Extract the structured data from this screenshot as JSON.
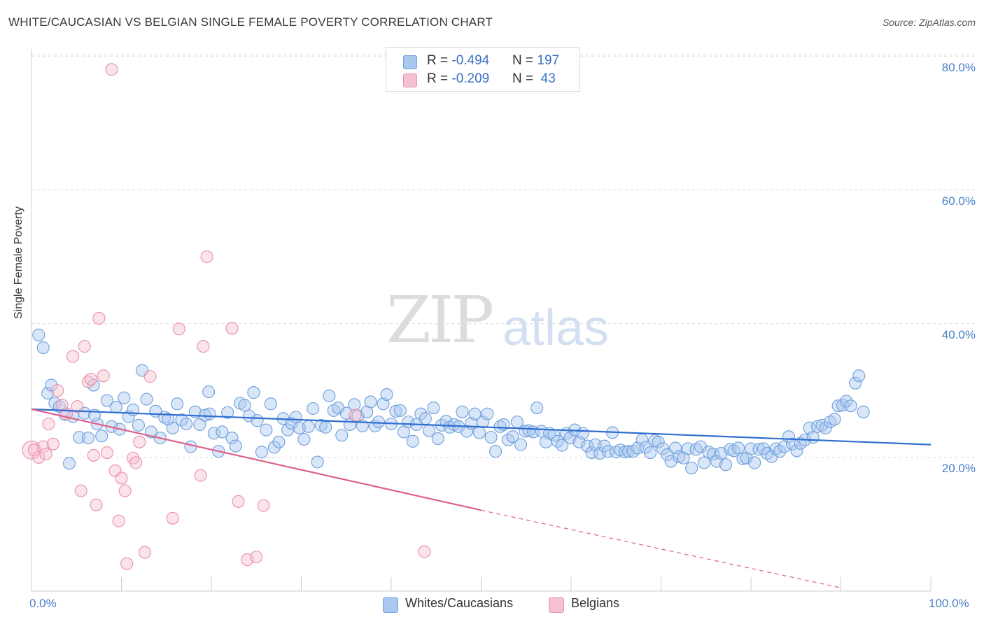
{
  "header": {
    "title": "WHITE/CAUCASIAN VS BELGIAN SINGLE FEMALE POVERTY CORRELATION CHART",
    "source": "Source: ZipAtlas.com"
  },
  "watermark": {
    "part1": "ZIP",
    "part2": "atlas"
  },
  "legend": {
    "rows": [
      {
        "r_label": "R = ",
        "r_value": "-0.494",
        "n_label": "N = ",
        "n_value": "197",
        "color": "#a9c7ef",
        "border": "#6e9fdc"
      },
      {
        "r_label": "R = ",
        "r_value": "-0.209",
        "n_label": "N = ",
        "n_value": " 43",
        "color": "#f6c1d1",
        "border": "#ea8fab"
      }
    ]
  },
  "bottom_legend": {
    "items": [
      {
        "label": "Whites/Caucasians",
        "color": "#a9c7ef",
        "border": "#6e9fdc"
      },
      {
        "label": "Belgians",
        "color": "#f6c1d1",
        "border": "#ea8fab"
      }
    ]
  },
  "axes": {
    "ylabel": "Single Female Poverty",
    "y_ticks": [
      "20.0%",
      "40.0%",
      "60.0%",
      "80.0%"
    ],
    "x_ticks": [
      "0.0%",
      "100.0%"
    ]
  },
  "chart_data": {
    "type": "scatter",
    "title": "WHITE/CAUCASIAN VS BELGIAN SINGLE FEMALE POVERTY CORRELATION CHART",
    "xlabel": "",
    "ylabel": "Single Female Poverty",
    "xlim": [
      0,
      100
    ],
    "ylim": [
      0,
      82
    ],
    "grid": "horizontal dashed",
    "legend_position": "top-center",
    "colors": {
      "whites": "#6e9fdc",
      "belgians": "#ea8fab",
      "whites_line": "#2f6fd0",
      "belgians_line": "#e0608a"
    },
    "series": [
      {
        "name": "Whites/Caucasians",
        "R": -0.494,
        "N": 197,
        "trend": {
          "x": [
            0,
            100
          ],
          "y": [
            27.2,
            21.9
          ]
        },
        "points": [
          [
            0.8,
            38.3
          ],
          [
            1.3,
            36.4
          ],
          [
            1.8,
            29.6
          ],
          [
            2.2,
            30.8
          ],
          [
            2.6,
            28.1
          ],
          [
            3.1,
            27.6
          ],
          [
            3.7,
            26.4
          ],
          [
            4.2,
            19.1
          ],
          [
            4.6,
            26.1
          ],
          [
            5.3,
            23.0
          ],
          [
            5.9,
            26.6
          ],
          [
            6.3,
            22.9
          ],
          [
            6.9,
            30.8
          ],
          [
            7.3,
            25.0
          ],
          [
            7.8,
            23.2
          ],
          [
            8.4,
            28.5
          ],
          [
            8.9,
            24.6
          ],
          [
            9.4,
            27.5
          ],
          [
            9.8,
            24.2
          ],
          [
            10.3,
            28.9
          ],
          [
            10.8,
            26.1
          ],
          [
            11.3,
            27.1
          ],
          [
            11.9,
            24.8
          ],
          [
            12.3,
            33.0
          ],
          [
            12.8,
            28.7
          ],
          [
            13.3,
            23.8
          ],
          [
            13.8,
            26.9
          ],
          [
            14.3,
            22.9
          ],
          [
            14.8,
            26.0
          ],
          [
            15.2,
            25.7
          ],
          [
            15.7,
            24.4
          ],
          [
            16.2,
            28.0
          ],
          [
            16.7,
            25.6
          ],
          [
            17.2,
            25.0
          ],
          [
            17.7,
            21.6
          ],
          [
            18.2,
            26.8
          ],
          [
            18.7,
            24.9
          ],
          [
            19.3,
            26.3
          ],
          [
            19.7,
            29.8
          ],
          [
            20.3,
            23.6
          ],
          [
            20.8,
            20.9
          ],
          [
            21.2,
            23.8
          ],
          [
            21.8,
            26.7
          ],
          [
            22.3,
            22.9
          ],
          [
            22.7,
            21.7
          ],
          [
            23.2,
            28.1
          ],
          [
            23.7,
            27.8
          ],
          [
            24.2,
            26.2
          ],
          [
            24.7,
            29.7
          ],
          [
            25.1,
            25.5
          ],
          [
            25.6,
            20.8
          ],
          [
            26.1,
            24.1
          ],
          [
            26.6,
            28.0
          ],
          [
            27.0,
            21.5
          ],
          [
            27.5,
            22.3
          ],
          [
            28.0,
            25.8
          ],
          [
            28.5,
            24.1
          ],
          [
            28.9,
            25.1
          ],
          [
            29.4,
            26.0
          ],
          [
            29.8,
            24.4
          ],
          [
            30.3,
            22.7
          ],
          [
            30.8,
            24.6
          ],
          [
            31.3,
            27.3
          ],
          [
            31.8,
            19.3
          ],
          [
            32.2,
            24.8
          ],
          [
            32.7,
            24.5
          ],
          [
            33.1,
            29.2
          ],
          [
            33.6,
            27.0
          ],
          [
            34.1,
            27.4
          ],
          [
            34.5,
            23.3
          ],
          [
            35.0,
            26.6
          ],
          [
            35.4,
            24.9
          ],
          [
            35.9,
            27.9
          ],
          [
            36.3,
            26.2
          ],
          [
            36.8,
            24.7
          ],
          [
            37.3,
            26.8
          ],
          [
            37.7,
            28.3
          ],
          [
            38.2,
            24.7
          ],
          [
            38.6,
            25.3
          ],
          [
            39.1,
            28.0
          ],
          [
            39.5,
            29.4
          ],
          [
            40.0,
            25.0
          ],
          [
            40.5,
            26.9
          ],
          [
            41.0,
            27.0
          ],
          [
            41.4,
            23.8
          ],
          [
            41.9,
            25.3
          ],
          [
            42.4,
            22.4
          ],
          [
            42.8,
            24.9
          ],
          [
            43.3,
            26.5
          ],
          [
            43.8,
            25.8
          ],
          [
            44.2,
            24.0
          ],
          [
            44.7,
            27.4
          ],
          [
            45.2,
            22.8
          ],
          [
            45.6,
            24.8
          ],
          [
            46.1,
            25.4
          ],
          [
            46.5,
            24.5
          ],
          [
            47.0,
            24.9
          ],
          [
            47.5,
            24.6
          ],
          [
            47.9,
            26.8
          ],
          [
            48.4,
            23.9
          ],
          [
            48.9,
            25.1
          ],
          [
            49.3,
            26.5
          ],
          [
            49.8,
            23.7
          ],
          [
            50.2,
            25.3
          ],
          [
            50.7,
            26.5
          ],
          [
            51.1,
            23.0
          ],
          [
            51.6,
            20.9
          ],
          [
            52.1,
            24.6
          ],
          [
            52.5,
            24.9
          ],
          [
            53.0,
            22.6
          ],
          [
            53.5,
            23.1
          ],
          [
            54.0,
            25.3
          ],
          [
            54.4,
            21.9
          ],
          [
            54.9,
            23.9
          ],
          [
            55.3,
            24.0
          ],
          [
            55.8,
            23.8
          ],
          [
            56.2,
            27.4
          ],
          [
            56.7,
            23.9
          ],
          [
            57.2,
            22.3
          ],
          [
            57.6,
            23.6
          ],
          [
            58.1,
            23.3
          ],
          [
            58.5,
            22.4
          ],
          [
            59.0,
            21.8
          ],
          [
            59.5,
            23.6
          ],
          [
            59.9,
            22.9
          ],
          [
            60.4,
            24.1
          ],
          [
            60.9,
            22.3
          ],
          [
            61.3,
            23.6
          ],
          [
            61.8,
            21.7
          ],
          [
            62.3,
            20.7
          ],
          [
            62.7,
            21.9
          ],
          [
            63.2,
            20.6
          ],
          [
            63.7,
            21.7
          ],
          [
            64.1,
            20.9
          ],
          [
            64.6,
            23.7
          ],
          [
            65.0,
            20.8
          ],
          [
            65.5,
            21.1
          ],
          [
            66.0,
            20.8
          ],
          [
            66.4,
            20.9
          ],
          [
            66.9,
            20.9
          ],
          [
            67.4,
            21.4
          ],
          [
            67.9,
            22.6
          ],
          [
            68.3,
            21.5
          ],
          [
            68.8,
            20.7
          ],
          [
            69.3,
            22.5
          ],
          [
            69.7,
            22.3
          ],
          [
            70.2,
            21.3
          ],
          [
            70.7,
            20.4
          ],
          [
            71.1,
            19.4
          ],
          [
            71.6,
            21.4
          ],
          [
            72.0,
            20.1
          ],
          [
            72.5,
            19.9
          ],
          [
            73.0,
            21.3
          ],
          [
            73.4,
            18.4
          ],
          [
            73.9,
            21.2
          ],
          [
            74.4,
            21.6
          ],
          [
            74.8,
            19.2
          ],
          [
            75.3,
            20.8
          ],
          [
            75.8,
            20.5
          ],
          [
            76.2,
            19.4
          ],
          [
            76.7,
            20.6
          ],
          [
            77.2,
            18.9
          ],
          [
            77.7,
            21.2
          ],
          [
            78.1,
            21.0
          ],
          [
            78.6,
            21.4
          ],
          [
            79.1,
            19.8
          ],
          [
            79.5,
            19.9
          ],
          [
            80.0,
            21.3
          ],
          [
            80.4,
            19.2
          ],
          [
            80.9,
            21.2
          ],
          [
            81.4,
            21.3
          ],
          [
            81.8,
            20.6
          ],
          [
            82.3,
            20.1
          ],
          [
            82.8,
            21.3
          ],
          [
            83.2,
            20.9
          ],
          [
            83.7,
            21.6
          ],
          [
            84.2,
            23.1
          ],
          [
            84.6,
            22.0
          ],
          [
            85.1,
            21.0
          ],
          [
            85.5,
            22.1
          ],
          [
            86.0,
            22.6
          ],
          [
            86.5,
            24.4
          ],
          [
            86.9,
            23.0
          ],
          [
            87.4,
            24.6
          ],
          [
            87.9,
            24.8
          ],
          [
            88.3,
            24.4
          ],
          [
            88.8,
            25.3
          ],
          [
            89.3,
            25.7
          ],
          [
            89.7,
            27.7
          ],
          [
            90.2,
            27.8
          ],
          [
            90.6,
            28.4
          ],
          [
            91.1,
            27.7
          ],
          [
            91.6,
            31.1
          ],
          [
            92.0,
            32.2
          ],
          [
            92.5,
            26.8
          ],
          [
            19.8,
            26.5
          ],
          [
            7.0,
            26.3
          ]
        ]
      },
      {
        "name": "Belgians",
        "R": -0.209,
        "N": 43,
        "trend": {
          "x": [
            0,
            50
          ],
          "y": [
            27.2,
            12.1
          ]
        },
        "trend_dashed": {
          "x": [
            50,
            90
          ],
          "y": [
            12.1,
            0.5
          ]
        },
        "points": [
          [
            0.3,
            21.1
          ],
          [
            0.8,
            20.0
          ],
          [
            1.3,
            21.6
          ],
          [
            1.6,
            20.5
          ],
          [
            1.9,
            25.0
          ],
          [
            2.4,
            22.0
          ],
          [
            2.9,
            30.0
          ],
          [
            3.4,
            27.8
          ],
          [
            3.9,
            26.5
          ],
          [
            4.6,
            35.1
          ],
          [
            5.1,
            27.6
          ],
          [
            5.5,
            15.0
          ],
          [
            5.9,
            36.6
          ],
          [
            6.3,
            31.3
          ],
          [
            6.6,
            31.7
          ],
          [
            6.9,
            20.3
          ],
          [
            7.2,
            12.9
          ],
          [
            7.5,
            40.8
          ],
          [
            8.0,
            32.2
          ],
          [
            8.4,
            20.7
          ],
          [
            8.9,
            78.0
          ],
          [
            9.3,
            18.0
          ],
          [
            9.7,
            10.5
          ],
          [
            10.0,
            16.9
          ],
          [
            10.4,
            15.0
          ],
          [
            10.6,
            4.1
          ],
          [
            11.3,
            19.9
          ],
          [
            11.6,
            19.2
          ],
          [
            12.0,
            22.3
          ],
          [
            12.6,
            5.8
          ],
          [
            13.2,
            32.1
          ],
          [
            15.7,
            10.9
          ],
          [
            16.4,
            39.2
          ],
          [
            18.8,
            17.3
          ],
          [
            19.1,
            36.6
          ],
          [
            19.5,
            50.0
          ],
          [
            22.3,
            39.3
          ],
          [
            23.0,
            13.4
          ],
          [
            24.0,
            4.7
          ],
          [
            25.0,
            5.1
          ],
          [
            25.8,
            12.8
          ],
          [
            36.0,
            26.3
          ],
          [
            43.7,
            5.9
          ]
        ]
      }
    ]
  }
}
